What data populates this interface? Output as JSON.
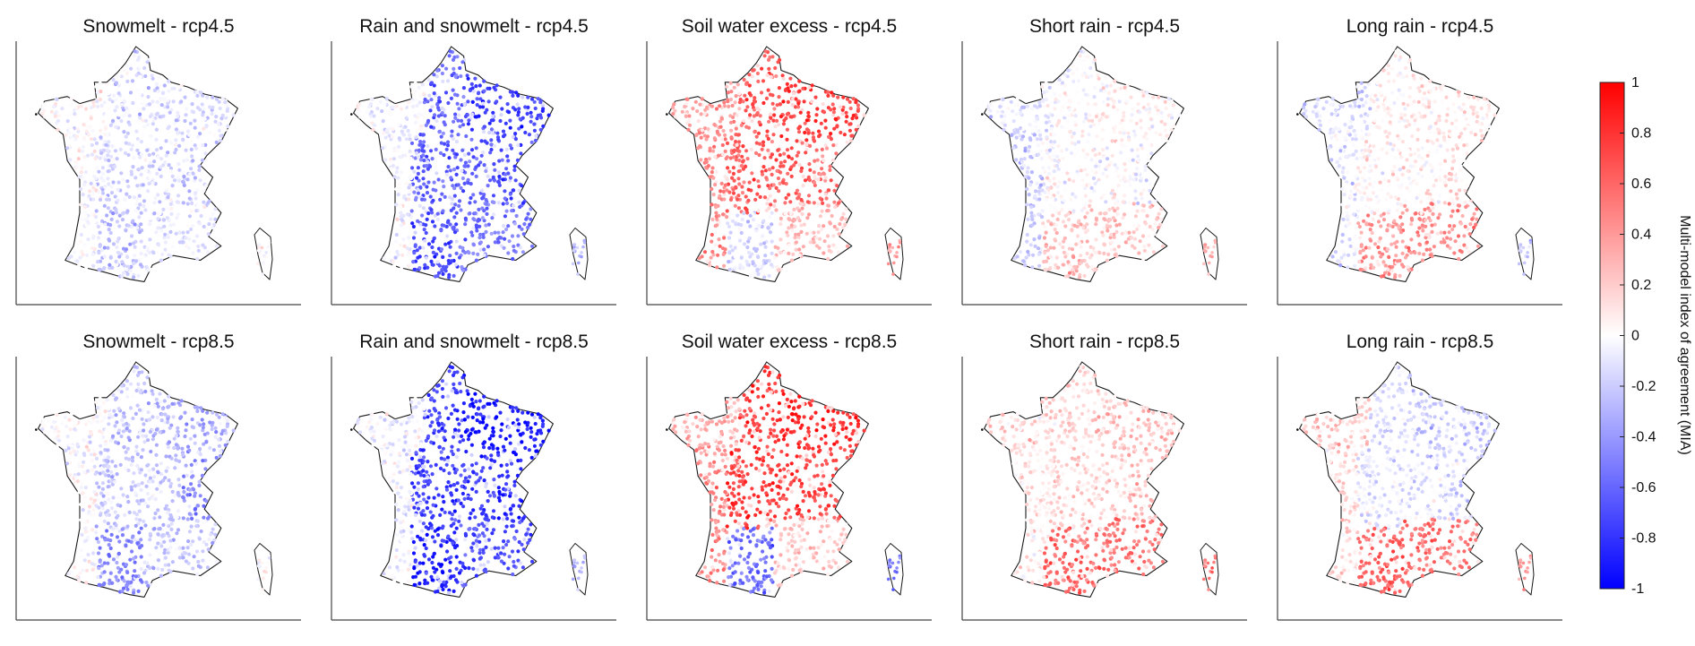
{
  "chart_data": {
    "type": "scatter",
    "figure_kind": "grid of point maps of France (10 panels)",
    "rows": 2,
    "columns": 5,
    "panels": [
      {
        "title": "Snowmelt - rcp4.5",
        "scenario": "rcp4.5",
        "process": "Snowmelt",
        "pattern": "mostly white/near zero; weak negative (blue) values in the north-east, centre and around the Alps and Pyrenees",
        "regions": {
          "northeast": -0.15,
          "east": -0.2,
          "centre": -0.15,
          "southeast": -0.1,
          "southwest": -0.25,
          "west": 0.0,
          "northwest": 0.0
        },
        "corsica": 0.0
      },
      {
        "title": "Rain and snowmelt - rcp4.5",
        "scenario": "rcp4.5",
        "process": "Rain and snowmelt",
        "pattern": "strong negative (blue) values over the east and centre, white in the west",
        "regions": {
          "northeast": -0.75,
          "east": -0.7,
          "centre": -0.6,
          "southeast": -0.55,
          "southwest": -0.7,
          "west": -0.05,
          "northwest": -0.05
        },
        "corsica": -0.3
      },
      {
        "title": "Soil water excess - rcp4.5",
        "scenario": "rcp4.5",
        "process": "Soil water excess",
        "pattern": "positive (red) values over most of France, slightly negative in parts of the south-west and Alps",
        "regions": {
          "northeast": 0.75,
          "east": 0.55,
          "centre": 0.65,
          "southeast": 0.25,
          "southwest": -0.15,
          "west": 0.45,
          "northwest": 0.4
        },
        "corsica": 0.4
      },
      {
        "title": "Short rain - rcp4.5",
        "scenario": "rcp4.5",
        "process": "Short rain",
        "pattern": "weak mixed values; slightly positive in the south, slightly negative in the west",
        "regions": {
          "northeast": 0.05,
          "east": -0.05,
          "centre": 0.0,
          "southeast": 0.2,
          "southwest": 0.25,
          "west": -0.2,
          "northwest": -0.1
        },
        "corsica": 0.35
      },
      {
        "title": "Long rain - rcp4.5",
        "scenario": "rcp4.5",
        "process": "Long rain",
        "pattern": "weak mixed values; positive in the south and along the Alps, slightly negative in the north-west",
        "regions": {
          "northeast": 0.1,
          "east": 0.1,
          "centre": 0.05,
          "southeast": 0.45,
          "southwest": 0.4,
          "west": -0.1,
          "northwest": -0.15
        },
        "corsica": -0.2
      },
      {
        "title": "Snowmelt - rcp8.5",
        "scenario": "rcp8.5",
        "process": "Snowmelt",
        "pattern": "mostly white; negative (blue) values in the north-east, centre, Alps and Pyrenees",
        "regions": {
          "northeast": -0.3,
          "east": -0.45,
          "centre": -0.2,
          "southeast": -0.2,
          "southwest": -0.45,
          "west": -0.02,
          "northwest": -0.02
        },
        "corsica": 0.0
      },
      {
        "title": "Rain and snowmelt - rcp8.5",
        "scenario": "rcp8.5",
        "process": "Rain and snowmelt",
        "pattern": "strong negative (blue) values over the east and centre, white in the west",
        "regions": {
          "northeast": -0.9,
          "east": -0.85,
          "centre": -0.75,
          "southeast": -0.7,
          "southwest": -0.85,
          "west": -0.05,
          "northwest": -0.05
        },
        "corsica": -0.3
      },
      {
        "title": "Soil water excess - rcp8.5",
        "scenario": "rcp8.5",
        "process": "Soil water excess",
        "pattern": "strong positive (red) values over the north-east and centre, negative in the south-west and parts of the Alps",
        "regions": {
          "northeast": 0.85,
          "east": 0.7,
          "centre": 0.75,
          "southeast": 0.2,
          "southwest": -0.55,
          "west": 0.45,
          "northwest": 0.3
        },
        "corsica": -0.55
      },
      {
        "title": "Short rain - rcp8.5",
        "scenario": "rcp8.5",
        "process": "Short rain",
        "pattern": "positive (red) values, strongest in the south and south-east",
        "regions": {
          "northeast": 0.25,
          "east": 0.25,
          "centre": 0.15,
          "southeast": 0.55,
          "southwest": 0.6,
          "west": 0.1,
          "northwest": 0.15
        },
        "corsica": 0.5
      },
      {
        "title": "Long rain - rcp8.5",
        "scenario": "rcp8.5",
        "process": "Long rain",
        "pattern": "mixed values; positive in the south and along the Alps, negative in the north-east and centre",
        "regions": {
          "northeast": -0.2,
          "east": -0.15,
          "centre": -0.1,
          "southeast": 0.55,
          "southwest": 0.6,
          "west": 0.15,
          "northwest": 0.2
        },
        "corsica": 0.4
      }
    ],
    "colorbar": {
      "label": "Multi-model index of agreement (MIA)",
      "ticks": [
        "1",
        "0.8",
        "0.6",
        "0.4",
        "0.2",
        "0",
        "-0.2",
        "-0.4",
        "-0.6",
        "-0.8",
        "-1"
      ],
      "range": [
        -1,
        1
      ],
      "colormap": {
        "low": "#0000ff",
        "mid": "#ffffff",
        "high": "#ff0000"
      }
    }
  }
}
